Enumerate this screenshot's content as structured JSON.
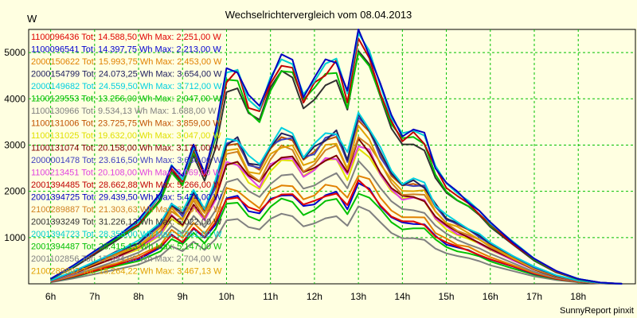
{
  "chart_data": {
    "type": "line",
    "title": "Wechselrichtervergleich vom 08.04.2013",
    "ylabel": "W",
    "xlabel": "",
    "ylim": [
      0,
      5500
    ],
    "xlim": [
      5.5,
      19.3
    ],
    "yticks": [
      1000,
      2000,
      3000,
      4000,
      5000
    ],
    "xticks": [
      {
        "label": "6h",
        "x": 6
      },
      {
        "label": "7h",
        "x": 7
      },
      {
        "label": "8h",
        "x": 8
      },
      {
        "label": "9h",
        "x": 9
      },
      {
        "label": "10h",
        "x": 10
      },
      {
        "label": "11h",
        "x": 11
      },
      {
        "label": "12h",
        "x": 12
      },
      {
        "label": "13h",
        "x": 13
      },
      {
        "label": "14h",
        "x": 14
      },
      {
        "label": "15h",
        "x": 15
      },
      {
        "label": "16h",
        "x": 16
      },
      {
        "label": "17h",
        "x": 17
      },
      {
        "label": "18h",
        "x": 18
      }
    ],
    "grid": true,
    "legend_position": "top-left, inside plot",
    "x": [
      6.0,
      6.5,
      7.0,
      7.5,
      8.0,
      8.5,
      8.75,
      9.0,
      9.25,
      9.5,
      9.75,
      10.0,
      10.25,
      10.5,
      10.75,
      11.0,
      11.25,
      11.5,
      11.75,
      12.0,
      12.25,
      12.5,
      12.75,
      13.0,
      13.25,
      13.5,
      13.75,
      14.0,
      14.25,
      14.5,
      14.75,
      15.0,
      15.25,
      15.5,
      15.75,
      16.0,
      16.5,
      17.0,
      17.5,
      18.0,
      18.5,
      19.0
    ],
    "base_profile": [
      0.02,
      0.07,
      0.13,
      0.19,
      0.25,
      0.36,
      0.48,
      0.42,
      0.55,
      0.45,
      0.6,
      0.85,
      0.86,
      0.74,
      0.7,
      0.83,
      0.9,
      0.88,
      0.76,
      0.81,
      0.88,
      0.9,
      0.76,
      1.0,
      0.93,
      0.79,
      0.66,
      0.6,
      0.61,
      0.59,
      0.47,
      0.4,
      0.36,
      0.33,
      0.29,
      0.24,
      0.17,
      0.1,
      0.05,
      0.02,
      0.005,
      0.0
    ],
    "series": [
      {
        "label": "1100096436 Tot: 14.588,50 Wh Max: 2.251,00 W",
        "color": "#e00000",
        "peak": 2200
      },
      {
        "label": "1100096541 Tot: 14.397,75 Wh Max: 2.213,00 W",
        "color": "#0000d0",
        "peak": 2170
      },
      {
        "label": "2000150622 Tot: 15.993,75 Wh Max: 2.453,00 W",
        "color": "#e08000",
        "peak": 2390
      },
      {
        "label": "2000154799 Tot: 24.073,25 Wh Max: 3.654,00 W",
        "color": "#202060",
        "peak": 3600
      },
      {
        "label": "2000149682 Tot: 24.559,50 Wh Max: 3.712,00 W",
        "color": "#00d0e0",
        "peak": 3680
      },
      {
        "label": "1100129553 Tot: 13.256,00 Wh Max: 2.047,00 W",
        "color": "#00c000",
        "peak": 2000
      },
      {
        "label": "1100130966 Tot: 9.534,13 Wh Max: 1.688,00 W",
        "color": "#808080",
        "peak": 1650
      },
      {
        "label": "1100131006 Tot: 23.725,75 Wh Max: 3.859,00 W",
        "color": "#c05000",
        "peak": 3500
      },
      {
        "label": "1100131025 Tot: 19.632,00 Wh Max: 3.047,00 W",
        "color": "#e0e000",
        "peak": 3000
      },
      {
        "label": "1100131074 Tot: 20.158,00 Wh Max: 3.171,00 W",
        "color": "#800000",
        "peak": 3100
      },
      {
        "label": "2000001478 Tot: 23.616,50 Wh Max: 3.630,00 W",
        "color": "#4040c0",
        "peak": 3550
      },
      {
        "label": "1100213451 Tot: 20.108,00 Wh Max: 3.069,00 W",
        "color": "#e040e0",
        "peak": 3050
      },
      {
        "label": "2001394485 Tot: 28.662,88 Wh Max: 5.266,00 W",
        "color": "#c00000",
        "peak": 5250
      },
      {
        "label": "2001394725 Tot: 29.439,50 Wh Max: 5.474,00 W",
        "color": "#0000c0",
        "peak": 5440
      },
      {
        "label": "2100289887 Tot: 21.303,63 Wh Max: 3.307,00 W",
        "color": "#d08020",
        "peak": 3250
      },
      {
        "label": "2001393249 Tot: 31.226,13 Wh Max: 5.022,00 W",
        "color": "#303030",
        "peak": 5000
      },
      {
        "label": "2001394723 Tot: 28.355,00 Wh Max: 5.351,00 W",
        "color": "#00d0d0",
        "peak": 5320
      },
      {
        "label": "2001394487 Tot: 28.415,13 Wh Max: 5.147,00 W",
        "color": "#00c000",
        "peak": 5120
      },
      {
        "label": "2001102856 Tot: 17.394,00 Wh Max: 2.704,00 W",
        "color": "#808080",
        "peak": 2650
      },
      {
        "label": "2100289897 Tot: 18.264,22 Wh Max: 3.467,13 W",
        "color": "#e0a000",
        "peak": 3350
      }
    ]
  },
  "footer": {
    "credit": "SunnyReport pinxit"
  }
}
